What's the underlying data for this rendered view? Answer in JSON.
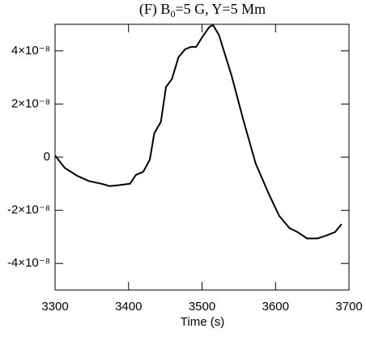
{
  "chart_data": {
    "type": "line",
    "title_parts": [
      "(F) B",
      "0",
      "=5 G,   Y=5 Mm"
    ],
    "xlabel": "Time (s)",
    "x": [
      3300,
      3313,
      3330,
      3346,
      3363,
      3374,
      3385,
      3402,
      3410,
      3420,
      3429,
      3435,
      3444,
      3451,
      3459,
      3468,
      3477,
      3485,
      3492,
      3501,
      3510,
      3515,
      3523,
      3540,
      3556,
      3573,
      3591,
      3605,
      3619,
      3630,
      3643,
      3657,
      3667,
      3681,
      3690
    ],
    "values": [
      6e-10,
      -4e-09,
      -7e-09,
      -9e-09,
      -1e-08,
      -1.09e-08,
      -1.06e-08,
      -1e-08,
      -6.7e-09,
      -5.5e-09,
      -9e-10,
      9e-09,
      1.33e-08,
      2.64e-08,
      2.94e-08,
      3.76e-08,
      4.06e-08,
      4.15e-08,
      4.15e-08,
      4.55e-08,
      4.9e-08,
      4.97e-08,
      4.6e-08,
      3.09e-08,
      1.42e-08,
      -2.4e-09,
      -1.39e-08,
      -2.21e-08,
      -2.67e-08,
      -2.82e-08,
      -3.06e-08,
      -3.06e-08,
      -2.97e-08,
      -2.82e-08,
      -2.52e-08
    ],
    "color": "#000000",
    "xlim": [
      3300,
      3700
    ],
    "xticks": [
      3300,
      3400,
      3500,
      3600,
      3700
    ],
    "ylim": [
      -5e-08,
      5e-08
    ],
    "yticks": [
      {
        "value": -4e-08,
        "label": "-4×10⁻⁸"
      },
      {
        "value": -2e-08,
        "label": "-2×10⁻⁸"
      },
      0,
      {
        "value": 2e-08,
        "label": "2×10⁻⁸"
      },
      {
        "value": 4e-08,
        "label": "4×10⁻⁸"
      }
    ]
  }
}
